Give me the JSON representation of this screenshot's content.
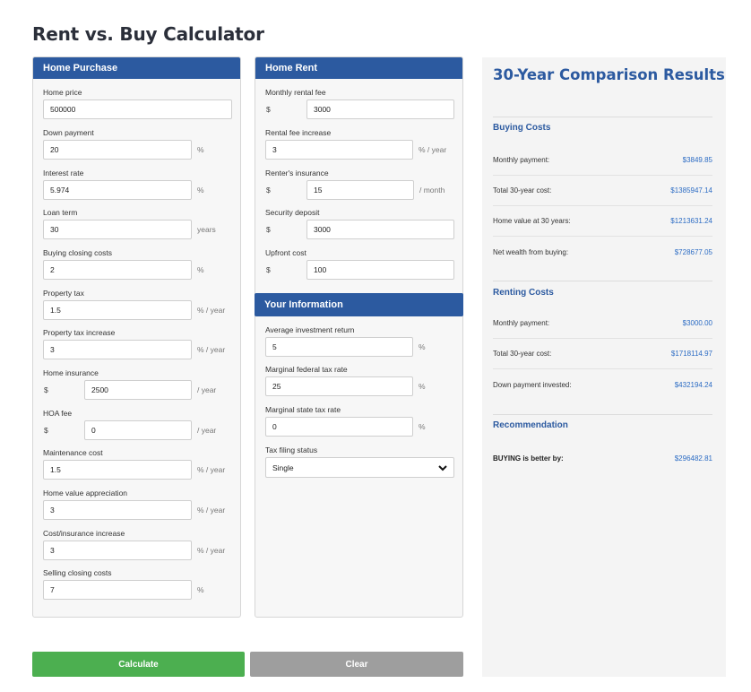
{
  "page_title": "Rent vs. Buy Calculator",
  "home_purchase": {
    "header": "Home Purchase",
    "fields": [
      {
        "label": "Home price",
        "value": "500000",
        "prefix": "",
        "suffix": ""
      },
      {
        "label": "Down payment",
        "value": "20",
        "prefix": "",
        "suffix": "%"
      },
      {
        "label": "Interest rate",
        "value": "5.974",
        "prefix": "",
        "suffix": "%"
      },
      {
        "label": "Loan term",
        "value": "30",
        "prefix": "",
        "suffix": "years"
      },
      {
        "label": "Buying closing costs",
        "value": "2",
        "prefix": "",
        "suffix": "%"
      },
      {
        "label": "Property tax",
        "value": "1.5",
        "prefix": "",
        "suffix": "% / year"
      },
      {
        "label": "Property tax increase",
        "value": "3",
        "prefix": "",
        "suffix": "% / year"
      },
      {
        "label": "Home insurance",
        "value": "2500",
        "prefix": "$",
        "suffix": "/ year"
      },
      {
        "label": "HOA fee",
        "value": "0",
        "prefix": "$",
        "suffix": "/ year"
      },
      {
        "label": "Maintenance cost",
        "value": "1.5",
        "prefix": "",
        "suffix": "% / year"
      },
      {
        "label": "Home value appreciation",
        "value": "3",
        "prefix": "",
        "suffix": "% / year"
      },
      {
        "label": "Cost/insurance increase",
        "value": "3",
        "prefix": "",
        "suffix": "% / year"
      },
      {
        "label": "Selling closing costs",
        "value": "7",
        "prefix": "",
        "suffix": "%"
      }
    ]
  },
  "home_rent": {
    "header": "Home Rent",
    "fields": [
      {
        "label": "Monthly rental fee",
        "value": "3000",
        "prefix": "$",
        "suffix": ""
      },
      {
        "label": "Rental fee increase",
        "value": "3",
        "prefix": "",
        "suffix": "% / year"
      },
      {
        "label": "Renter's insurance",
        "value": "15",
        "prefix": "$",
        "suffix": "/ month"
      },
      {
        "label": "Security deposit",
        "value": "3000",
        "prefix": "$",
        "suffix": ""
      },
      {
        "label": "Upfront cost",
        "value": "100",
        "prefix": "$",
        "suffix": ""
      }
    ]
  },
  "your_info": {
    "header": "Your Information",
    "fields": [
      {
        "label": "Average investment return",
        "value": "5",
        "suffix": "%"
      },
      {
        "label": "Marginal federal tax rate",
        "value": "25",
        "suffix": "%"
      },
      {
        "label": "Marginal state tax rate",
        "value": "0",
        "suffix": "%"
      }
    ],
    "filing_status": {
      "label": "Tax filing status",
      "value": "Single",
      "icon": "chevron-down-icon"
    }
  },
  "results": {
    "title": "30-Year Comparison Results",
    "buying": {
      "title": "Buying Costs",
      "rows": [
        {
          "label": "Monthly payment:",
          "value": "$3849.85"
        },
        {
          "label": "Total 30-year cost:",
          "value": "$1385947.14"
        },
        {
          "label": "Home value at 30 years:",
          "value": "$1213631.24"
        },
        {
          "label": "Net wealth from buying:",
          "value": "$728677.05"
        }
      ]
    },
    "renting": {
      "title": "Renting Costs",
      "rows": [
        {
          "label": "Monthly payment:",
          "value": "$3000.00"
        },
        {
          "label": "Total 30-year cost:",
          "value": "$1718114.97"
        },
        {
          "label": "Down payment invested:",
          "value": "$432194.24"
        }
      ]
    },
    "recommendation": {
      "title": "Recommendation",
      "label": "BUYING is better by:",
      "value": "$296482.81"
    }
  },
  "buttons": {
    "calculate": "Calculate",
    "clear": "Clear"
  },
  "colors": {
    "header": "#2c5aa0",
    "calculate": "#4caf50",
    "clear": "#9e9e9e",
    "value_text": "#2c6cc4"
  }
}
